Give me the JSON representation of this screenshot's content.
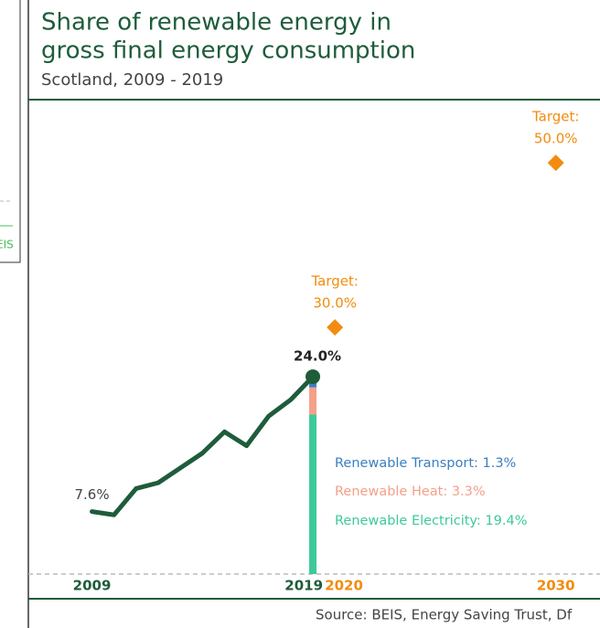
{
  "left_panel_fragment": "EIS",
  "chart_data": {
    "type": "line",
    "title": [
      "Share of renewable energy in",
      "gross final energy consumption"
    ],
    "subtitle": "Scotland, 2009 - 2019",
    "source": "Source: BEIS, Energy Saving Trust, Df",
    "xlim": [
      2006.7,
      2032
    ],
    "ylim": [
      0,
      57.8
    ],
    "xticks": [
      2009,
      2019,
      2020,
      2030
    ],
    "xtick_colors": [
      "#1e5c3a",
      "#1e5c3a",
      "#f28c0f",
      "#f28c0f"
    ],
    "series": [
      {
        "color": "#1e5c3a",
        "x": [
          2009,
          2010,
          2011,
          2012,
          2013,
          2014,
          2015,
          2016,
          2017,
          2018,
          2019
        ],
        "values": [
          7.6,
          7.2,
          10.4,
          11.1,
          12.9,
          14.7,
          17.3,
          15.6,
          19.2,
          21.2,
          24.0
        ],
        "value_labels": [
          "7.6%",
          null,
          null,
          null,
          null,
          null,
          null,
          null,
          null,
          null,
          "24.0%"
        ]
      }
    ],
    "targets": {
      "color": "#f28c0f",
      "x": [
        2020,
        2030
      ],
      "values": [
        30.0,
        50.0
      ],
      "labels": [
        "Target:",
        "Target:"
      ],
      "value_labels": [
        "30.0%",
        "50.0%"
      ]
    },
    "breakdown": {
      "x": 2019,
      "values": [
        19.4,
        3.3,
        1.3
      ],
      "value_labels": [
        "Renewable Electricity: 19.4%",
        "Renewable Heat: 3.3%",
        "Renewable Transport: 1.3%"
      ],
      "colors": [
        "#3ec99a",
        "#f4a08a",
        "#3a7fc1"
      ]
    }
  }
}
